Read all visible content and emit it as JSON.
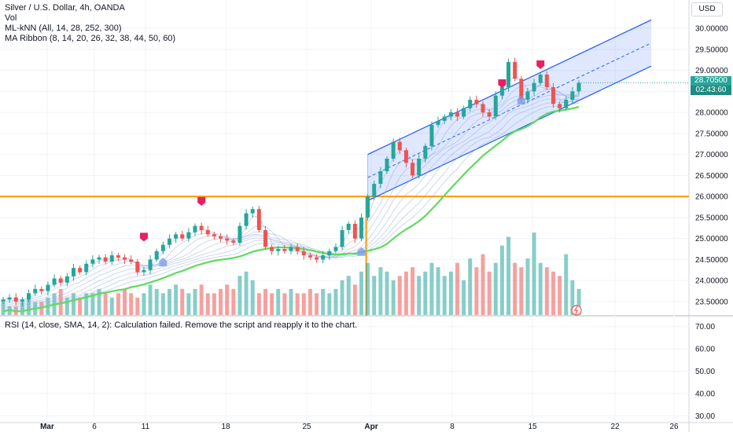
{
  "header": {
    "symbol_line": "Silver / U.S. Dollar, 4h, OANDA",
    "indicators": [
      "Vol",
      "ML-kNN (All, 14, 28, 252, 300)",
      "MA Ribbon (8, 14, 20, 26, 32, 38, 44, 50, 60)"
    ],
    "currency_button": "USD"
  },
  "last_price": {
    "value": "28.70500",
    "countdown": "02:43:60"
  },
  "rsi_panel": {
    "message": "RSI (14, close, SMA, 14, 2): Calculation failed. Remove the script and reapply it to the chart."
  },
  "colors": {
    "up": "#26a69a",
    "down": "#ef5350",
    "level": "#ff9800",
    "channel": "#2962ff",
    "ribbon_slow": "#5ddc5d",
    "signal_buy": "#7a9ee8",
    "signal_sell": "#e91e63"
  },
  "chart_data": [
    {
      "type": "candlestick",
      "title": "Silver / U.S. Dollar, 4h, OANDA",
      "y_ticks": [
        "30.00000",
        "29.50000",
        "29.00000",
        "28.50000",
        "28.00000",
        "27.50000",
        "27.00000",
        "26.50000",
        "26.00000",
        "25.50000",
        "25.00000",
        "24.50000",
        "24.00000",
        "23.50000"
      ],
      "ylim": [
        23.2,
        30.3
      ],
      "x_ticks": [
        "Mar",
        "6",
        "11",
        "18",
        "25",
        "Apr",
        "8",
        "15",
        "22",
        "26"
      ],
      "horizontal_level": 26.0,
      "series_close": [
        23.55,
        23.6,
        23.5,
        23.55,
        23.7,
        23.8,
        23.75,
        23.9,
        24.05,
        23.95,
        24.1,
        24.3,
        24.2,
        24.4,
        24.5,
        24.55,
        24.45,
        24.6,
        24.55,
        24.5,
        24.45,
        24.2,
        24.25,
        24.5,
        24.7,
        24.85,
        25.0,
        25.1,
        25.0,
        25.15,
        25.3,
        25.2,
        25.1,
        25.05,
        25.0,
        24.95,
        24.9,
        25.3,
        25.6,
        25.7,
        25.2,
        24.8,
        24.7,
        24.75,
        24.7,
        24.8,
        24.7,
        24.6,
        24.55,
        24.5,
        24.6,
        24.7,
        24.8,
        25.2,
        25.35,
        25.0,
        25.5,
        26.0,
        26.3,
        26.6,
        26.9,
        27.3,
        27.1,
        26.8,
        26.5,
        26.9,
        27.2,
        27.7,
        27.8,
        27.9,
        28.0,
        27.9,
        28.1,
        28.3,
        28.2,
        28.0,
        27.9,
        28.4,
        28.6,
        29.2,
        28.8,
        28.3,
        28.5,
        28.7,
        28.9,
        28.6,
        28.2,
        28.1,
        28.3,
        28.5,
        28.705
      ],
      "channel": {
        "upper_start": 27.0,
        "lower_start": 25.9,
        "upper_end": 30.2,
        "lower_end": 29.1
      }
    },
    {
      "type": "bar",
      "title": "Vol",
      "values": [
        3,
        2,
        2,
        3,
        4,
        3,
        3,
        4,
        5,
        6,
        4,
        5,
        4,
        5,
        5,
        6,
        5,
        4,
        5,
        6,
        5,
        4,
        5,
        7,
        6,
        5,
        6,
        7,
        6,
        5,
        6,
        7,
        5,
        5,
        6,
        7,
        6,
        9,
        10,
        8,
        5,
        6,
        5,
        6,
        5,
        6,
        5,
        5,
        6,
        5,
        6,
        5,
        6,
        8,
        9,
        7,
        10,
        12,
        9,
        11,
        10,
        8,
        9,
        10,
        11,
        9,
        10,
        12,
        11,
        9,
        10,
        12,
        8,
        13,
        11,
        14,
        10,
        12,
        16,
        18,
        12,
        11,
        13,
        19,
        12,
        11,
        10,
        9,
        14,
        8,
        6
      ]
    },
    {
      "type": "line",
      "title": "RSI (14, close, SMA, 14, 2)",
      "y_ticks": [
        "70.00",
        "60.00",
        "50.00",
        "40.00",
        "30.00"
      ],
      "ylim": [
        27,
        72
      ],
      "values": []
    }
  ]
}
